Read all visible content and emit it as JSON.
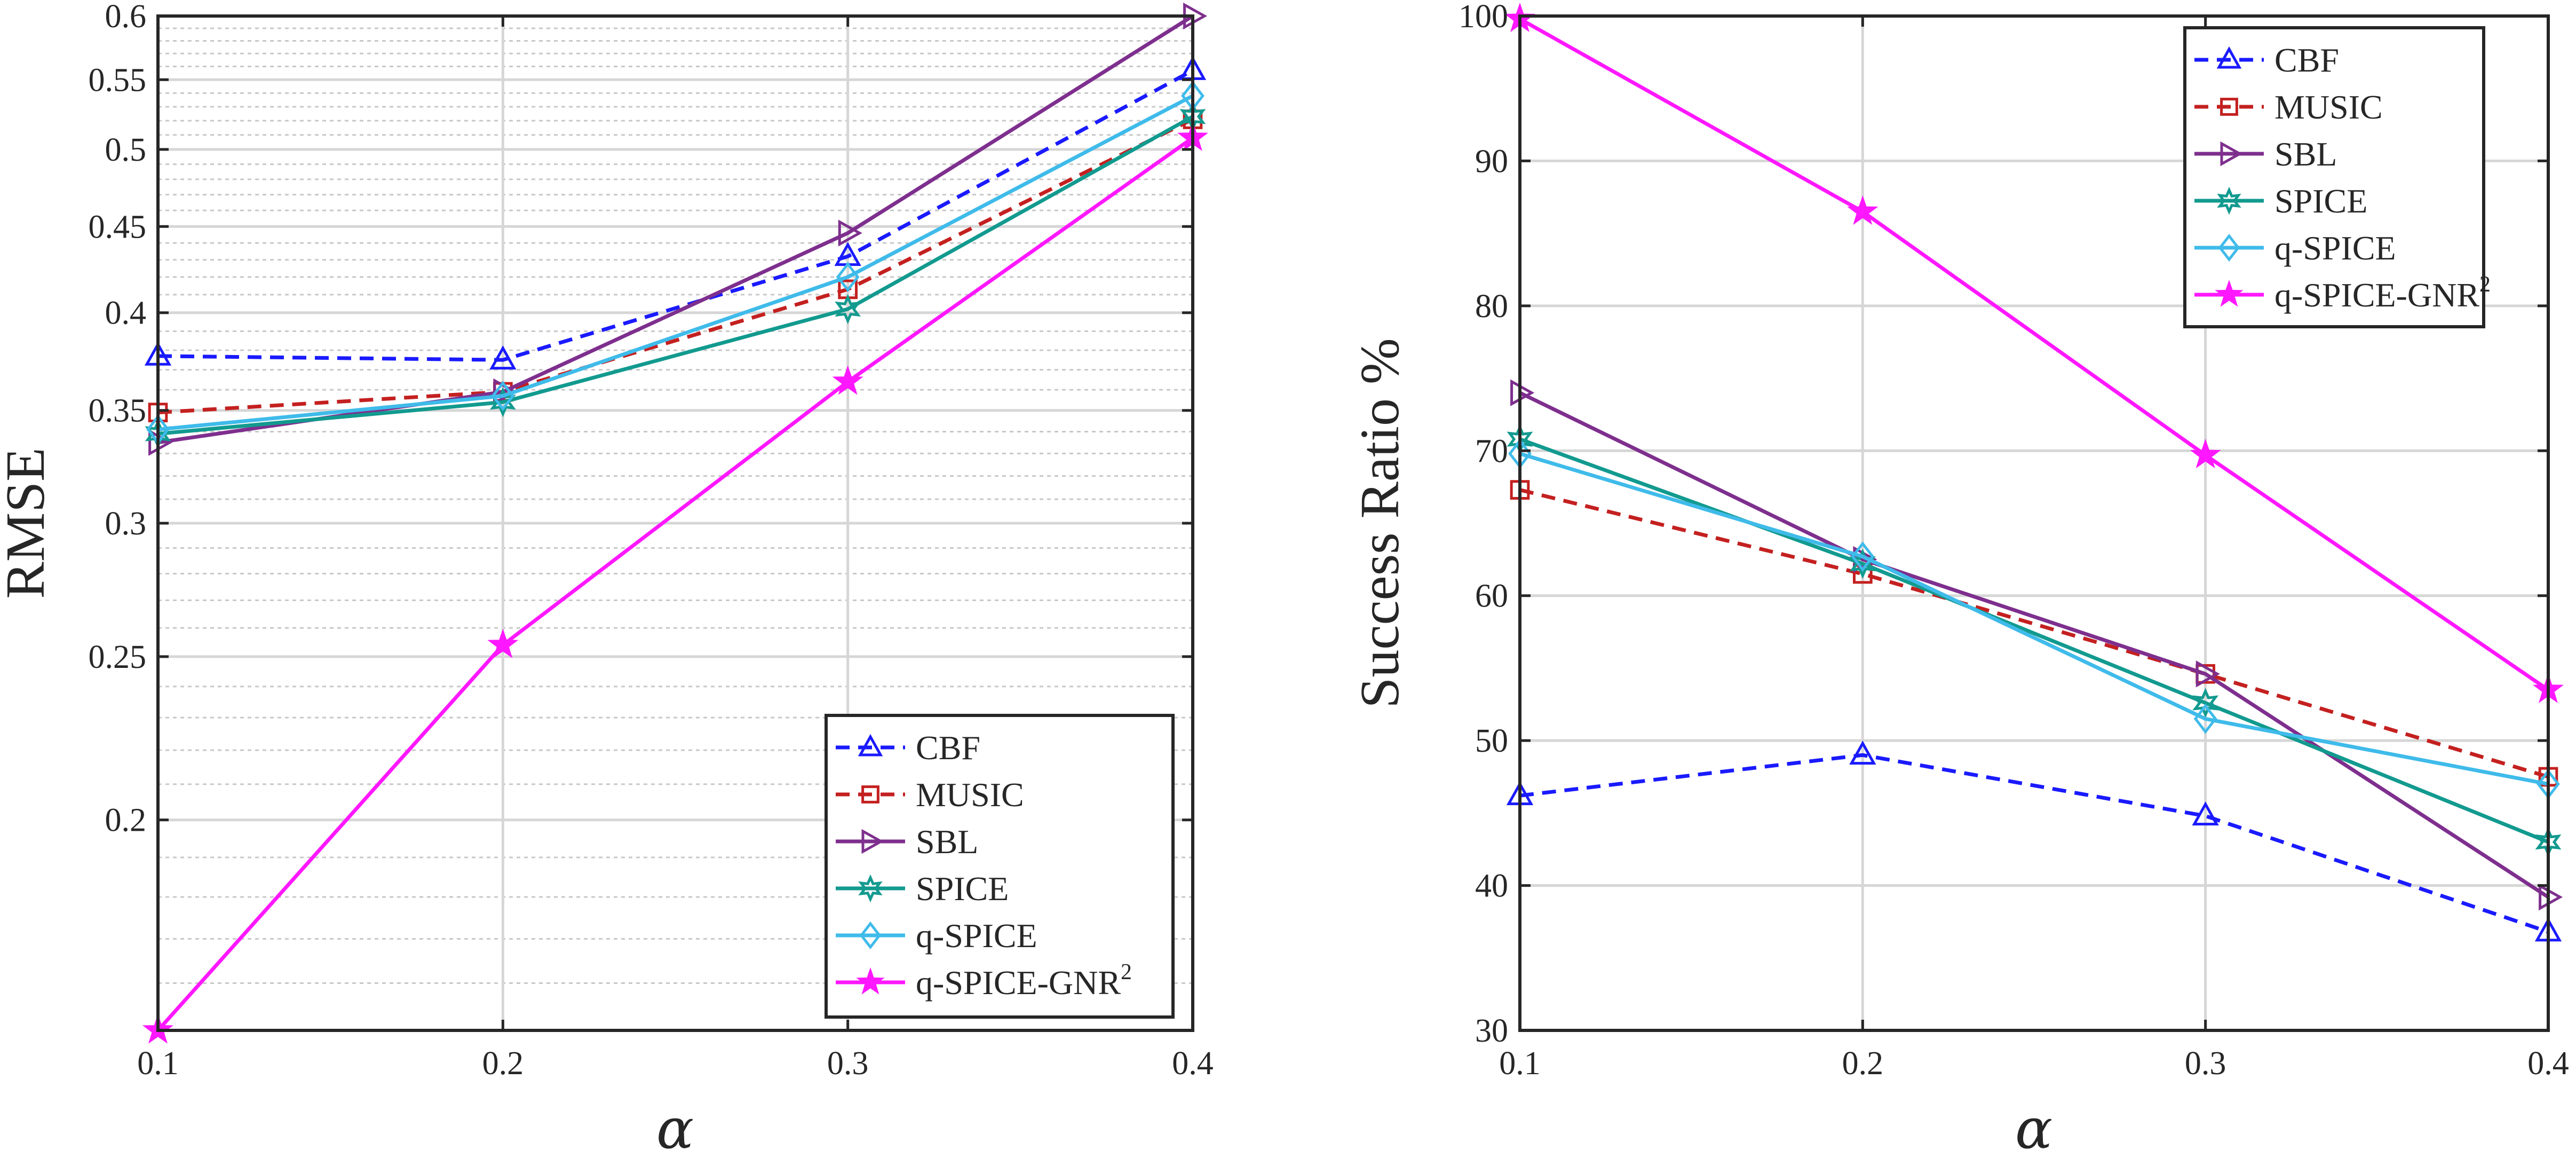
{
  "colors": {
    "CBF": "#1a1aff",
    "MUSIC": "#c42020",
    "SBL": "#7e2f8e",
    "SPICE": "#129a8f",
    "q-SPICE": "#3fbbea",
    "q-SPICE-GNR2": "#ff18ff"
  },
  "chart_data": [
    {
      "type": "line",
      "title": "",
      "xlabel": "α",
      "ylabel": "RMSE",
      "yscale": "log",
      "xlim": [
        0.1,
        0.4
      ],
      "ylim": [
        0.15,
        0.6
      ],
      "x": [
        0.1,
        0.2,
        0.3,
        0.4
      ],
      "x_tick_labels": [
        "0.1",
        "0.2",
        "0.3",
        "0.4"
      ],
      "y_ticks": [
        0.2,
        0.25,
        0.3,
        0.35,
        0.4,
        0.45,
        0.5,
        0.55,
        0.6
      ],
      "y_tick_labels": [
        "0.2",
        "0.25",
        "0.3",
        "0.35",
        "0.4",
        "0.45",
        "0.5",
        "0.55",
        "0.6"
      ],
      "grid": true,
      "legend_position": "bottom-right",
      "series": [
        {
          "name": "CBF",
          "marker": "triangle-up",
          "dash": "dashed",
          "values": [
            0.377,
            0.375,
            0.432,
            0.557
          ]
        },
        {
          "name": "MUSIC",
          "marker": "square",
          "dash": "dashed",
          "values": [
            0.349,
            0.359,
            0.413,
            0.521
          ]
        },
        {
          "name": "SBL",
          "marker": "triangle-right",
          "dash": "solid",
          "values": [
            0.335,
            0.359,
            0.446,
            0.6
          ]
        },
        {
          "name": "SPICE",
          "marker": "hexagram",
          "dash": "solid",
          "values": [
            0.339,
            0.354,
            0.402,
            0.523
          ]
        },
        {
          "name": "q-SPICE",
          "marker": "diamond",
          "dash": "solid",
          "values": [
            0.341,
            0.357,
            0.42,
            0.538
          ]
        },
        {
          "name": "q-SPICE-GNR",
          "name_sup": "2",
          "marker": "pentagram",
          "dash": "solid",
          "values": [
            0.15,
            0.254,
            0.364,
            0.508
          ]
        }
      ]
    },
    {
      "type": "line",
      "title": "",
      "xlabel": "α",
      "ylabel": "Success Ratio %",
      "yscale": "linear",
      "xlim": [
        0.1,
        0.4
      ],
      "ylim": [
        30,
        100
      ],
      "x": [
        0.1,
        0.2,
        0.3,
        0.4
      ],
      "x_tick_labels": [
        "0.1",
        "0.2",
        "0.3",
        "0.4"
      ],
      "y_ticks": [
        30,
        40,
        50,
        60,
        70,
        80,
        90,
        100
      ],
      "y_tick_labels": [
        "30",
        "40",
        "50",
        "60",
        "70",
        "80",
        "90",
        "100"
      ],
      "grid": true,
      "legend_position": "top-right",
      "series": [
        {
          "name": "CBF",
          "marker": "triangle-up",
          "dash": "dashed",
          "values": [
            46.2,
            49.0,
            44.8,
            36.8
          ]
        },
        {
          "name": "MUSIC",
          "marker": "square",
          "dash": "dashed",
          "values": [
            67.3,
            61.5,
            54.6,
            47.5
          ]
        },
        {
          "name": "SBL",
          "marker": "triangle-right",
          "dash": "solid",
          "values": [
            74.0,
            62.5,
            54.6,
            39.2
          ]
        },
        {
          "name": "SPICE",
          "marker": "hexagram",
          "dash": "solid",
          "values": [
            70.8,
            62.2,
            52.6,
            43.0
          ]
        },
        {
          "name": "q-SPICE",
          "marker": "diamond",
          "dash": "solid",
          "values": [
            69.8,
            62.7,
            51.5,
            47.0
          ]
        },
        {
          "name": "q-SPICE-GNR",
          "name_sup": "2",
          "marker": "pentagram",
          "dash": "solid",
          "values": [
            99.8,
            86.5,
            69.7,
            53.5
          ]
        }
      ]
    }
  ]
}
